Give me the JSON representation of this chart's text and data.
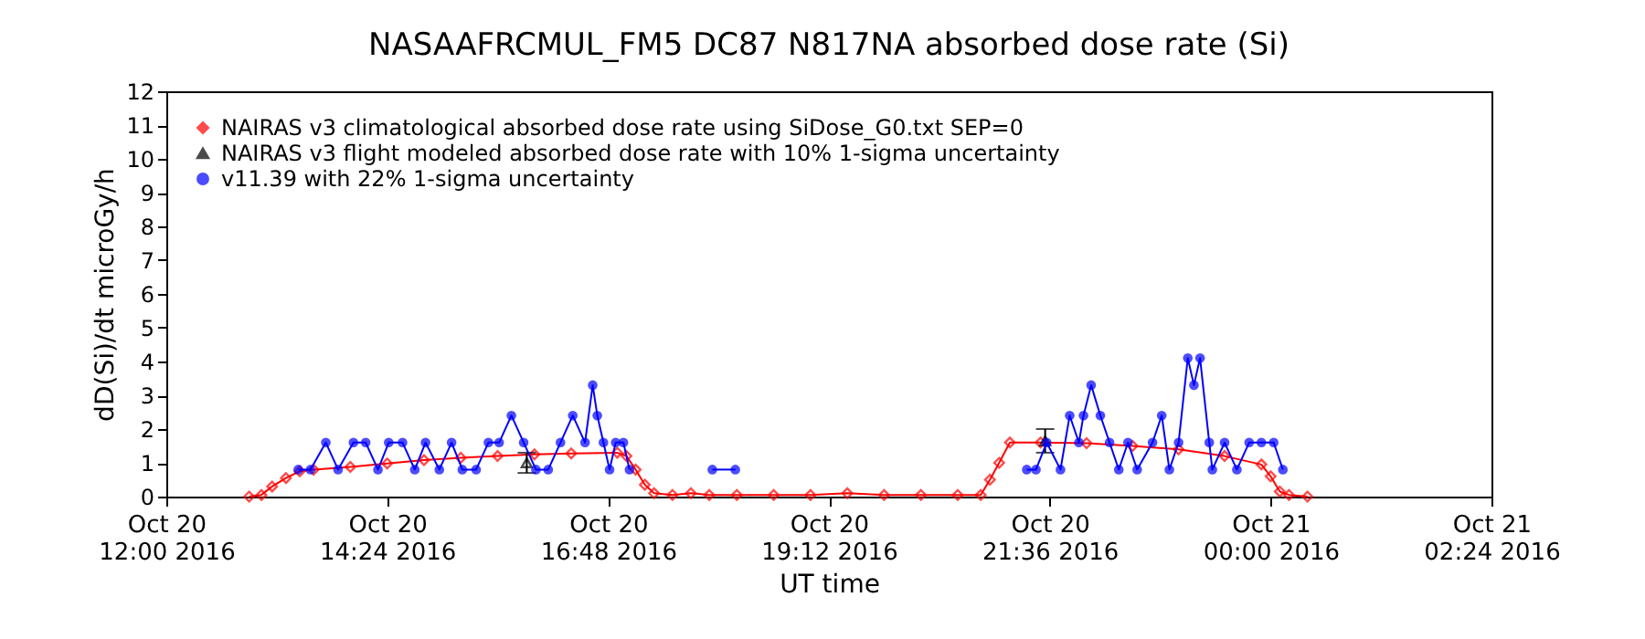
{
  "chart_data": {
    "type": "line",
    "title": "NASAAFRCMUL_FM5 DC87 N817NA absorbed dose rate (Si)",
    "xlabel": "UT time",
    "ylabel": "dD(Si)/dt microGy/h",
    "xlim": [
      "2016-10-20T12:00",
      "2016-10-21T02:24"
    ],
    "xticks": [
      {
        "value": "2016-10-20T12:00",
        "label": "Oct 20\n12:00 2016"
      },
      {
        "value": "2016-10-20T14:24",
        "label": "Oct 20\n14:24 2016"
      },
      {
        "value": "2016-10-20T16:48",
        "label": "Oct 20\n16:48 2016"
      },
      {
        "value": "2016-10-20T19:12",
        "label": "Oct 20\n19:12 2016"
      },
      {
        "value": "2016-10-20T21:36",
        "label": "Oct 20\n21:36 2016"
      },
      {
        "value": "2016-10-21T00:00",
        "label": "Oct 21\n00:00 2016"
      },
      {
        "value": "2016-10-21T02:24",
        "label": "Oct 21\n02:24 2016"
      }
    ],
    "ylim": [
      0,
      12
    ],
    "yticks": [
      0,
      1,
      2,
      3,
      4,
      5,
      6,
      7,
      8,
      9,
      10,
      11,
      12
    ],
    "grid": false,
    "legend": "top left",
    "series": [
      {
        "name": "NAIRAS v3 climatological absorbed dose rate using SiDose_G0.txt SEP=0",
        "marker": "diamond",
        "color": "#ff0000",
        "x": [
          "2016-10-20T12:54",
          "2016-10-20T13:02",
          "2016-10-20T13:09",
          "2016-10-20T13:18",
          "2016-10-20T13:27",
          "2016-10-20T13:36",
          "2016-10-20T14:00",
          "2016-10-20T14:24",
          "2016-10-20T14:48",
          "2016-10-20T15:12",
          "2016-10-20T15:36",
          "2016-10-20T16:00",
          "2016-10-20T16:24",
          "2016-10-20T16:54",
          "2016-10-20T17:00",
          "2016-10-20T17:06",
          "2016-10-20T17:12",
          "2016-10-20T17:18",
          "2016-10-20T17:30",
          "2016-10-20T17:42",
          "2016-10-20T17:54",
          "2016-10-20T18:12",
          "2016-10-20T18:36",
          "2016-10-20T19:00",
          "2016-10-20T19:24",
          "2016-10-20T19:48",
          "2016-10-20T20:12",
          "2016-10-20T20:36",
          "2016-10-20T20:51",
          "2016-10-20T20:57",
          "2016-10-20T21:03",
          "2016-10-20T21:10",
          "2016-10-20T21:30",
          "2016-10-20T22:00",
          "2016-10-20T22:30",
          "2016-10-20T23:00",
          "2016-10-20T23:30",
          "2016-10-20T23:54",
          "2016-10-21T00:00",
          "2016-10-21T00:06",
          "2016-10-21T00:12",
          "2016-10-21T00:24"
        ],
        "values": [
          0,
          0.05,
          0.3,
          0.55,
          0.75,
          0.8,
          0.88,
          0.98,
          1.08,
          1.15,
          1.2,
          1.25,
          1.28,
          1.3,
          1.2,
          0.8,
          0.35,
          0.1,
          0.05,
          0.1,
          0.05,
          0.05,
          0.05,
          0.05,
          0.1,
          0.05,
          0.05,
          0.05,
          0.05,
          0.5,
          1.0,
          1.6,
          1.6,
          1.58,
          1.5,
          1.4,
          1.2,
          0.95,
          0.6,
          0.15,
          0.05,
          0
        ]
      },
      {
        "name": "NAIRAS v3 flight modeled absorbed dose rate with 10% 1-sigma uncertainty",
        "type": "scatter",
        "marker": "triangle",
        "color": "#000000",
        "x": [
          "2016-10-20T15:55",
          "2016-10-20T21:33"
        ],
        "values": [
          1.0,
          1.65
        ],
        "errors": [
          [
            0.7,
            1.3
          ],
          [
            1.3,
            2.0
          ]
        ]
      },
      {
        "name": "v11.39 with 22% 1-sigma uncertainty",
        "marker": "circle",
        "color": "#0000ff",
        "x": [
          "2016-10-20T13:26",
          "2016-10-20T13:34",
          "2016-10-20T13:44",
          "2016-10-20T13:52",
          "2016-10-20T14:02",
          "2016-10-20T14:10",
          "2016-10-20T14:18",
          "2016-10-20T14:25",
          "2016-10-20T14:34",
          "2016-10-20T14:42",
          "2016-10-20T14:49",
          "2016-10-20T14:58",
          "2016-10-20T15:06",
          "2016-10-20T15:13",
          "2016-10-20T15:22",
          "2016-10-20T15:30",
          "2016-10-20T15:37",
          "2016-10-20T15:45",
          "2016-10-20T15:53",
          "2016-10-20T16:01",
          "2016-10-20T16:09",
          "2016-10-20T16:17",
          "2016-10-20T16:25",
          "2016-10-20T16:33",
          "2016-10-20T16:38",
          "2016-10-20T16:41",
          "2016-10-20T16:45",
          "2016-10-20T16:49",
          "2016-10-20T16:53",
          "2016-10-20T16:58",
          "2016-10-20T17:02",
          "2016-10-20T17:30",
          "2016-10-20T17:56",
          "2016-10-20T18:11",
          "2016-10-20T19:30",
          "2016-10-20T21:21",
          "2016-10-20T21:27",
          "2016-10-20T21:34",
          "2016-10-20T21:43",
          "2016-10-20T21:49",
          "2016-10-20T21:55",
          "2016-10-20T21:58",
          "2016-10-20T22:03",
          "2016-10-20T22:09",
          "2016-10-20T22:15",
          "2016-10-20T22:21",
          "2016-10-20T22:27",
          "2016-10-20T22:33",
          "2016-10-20T22:43",
          "2016-10-20T22:49",
          "2016-10-20T22:54",
          "2016-10-20T23:00",
          "2016-10-20T23:06",
          "2016-10-20T23:10",
          "2016-10-20T23:14",
          "2016-10-20T23:20",
          "2016-10-20T23:22",
          "2016-10-20T23:30",
          "2016-10-20T23:38",
          "2016-10-20T23:46",
          "2016-10-20T23:54",
          "2016-10-21T00:02",
          "2016-10-21T00:08"
        ],
        "values": [
          0.8,
          0.8,
          1.6,
          0.8,
          1.6,
          1.6,
          0.8,
          1.6,
          1.6,
          0.8,
          1.6,
          0.8,
          1.6,
          0.8,
          0.8,
          1.6,
          1.6,
          2.4,
          1.6,
          0.8,
          0.8,
          1.6,
          2.4,
          1.6,
          3.3,
          2.4,
          1.6,
          0.8,
          1.6,
          1.6,
          0.8,
          null,
          0.8,
          0.8,
          null,
          0.8,
          0.8,
          1.6,
          0.8,
          2.4,
          1.6,
          2.4,
          3.3,
          2.4,
          1.6,
          0.8,
          1.6,
          0.8,
          1.6,
          2.4,
          0.8,
          1.6,
          4.1,
          3.3,
          4.1,
          1.6,
          0.8,
          1.6,
          0.8,
          1.6,
          1.6,
          1.6,
          0.8
        ]
      }
    ]
  }
}
